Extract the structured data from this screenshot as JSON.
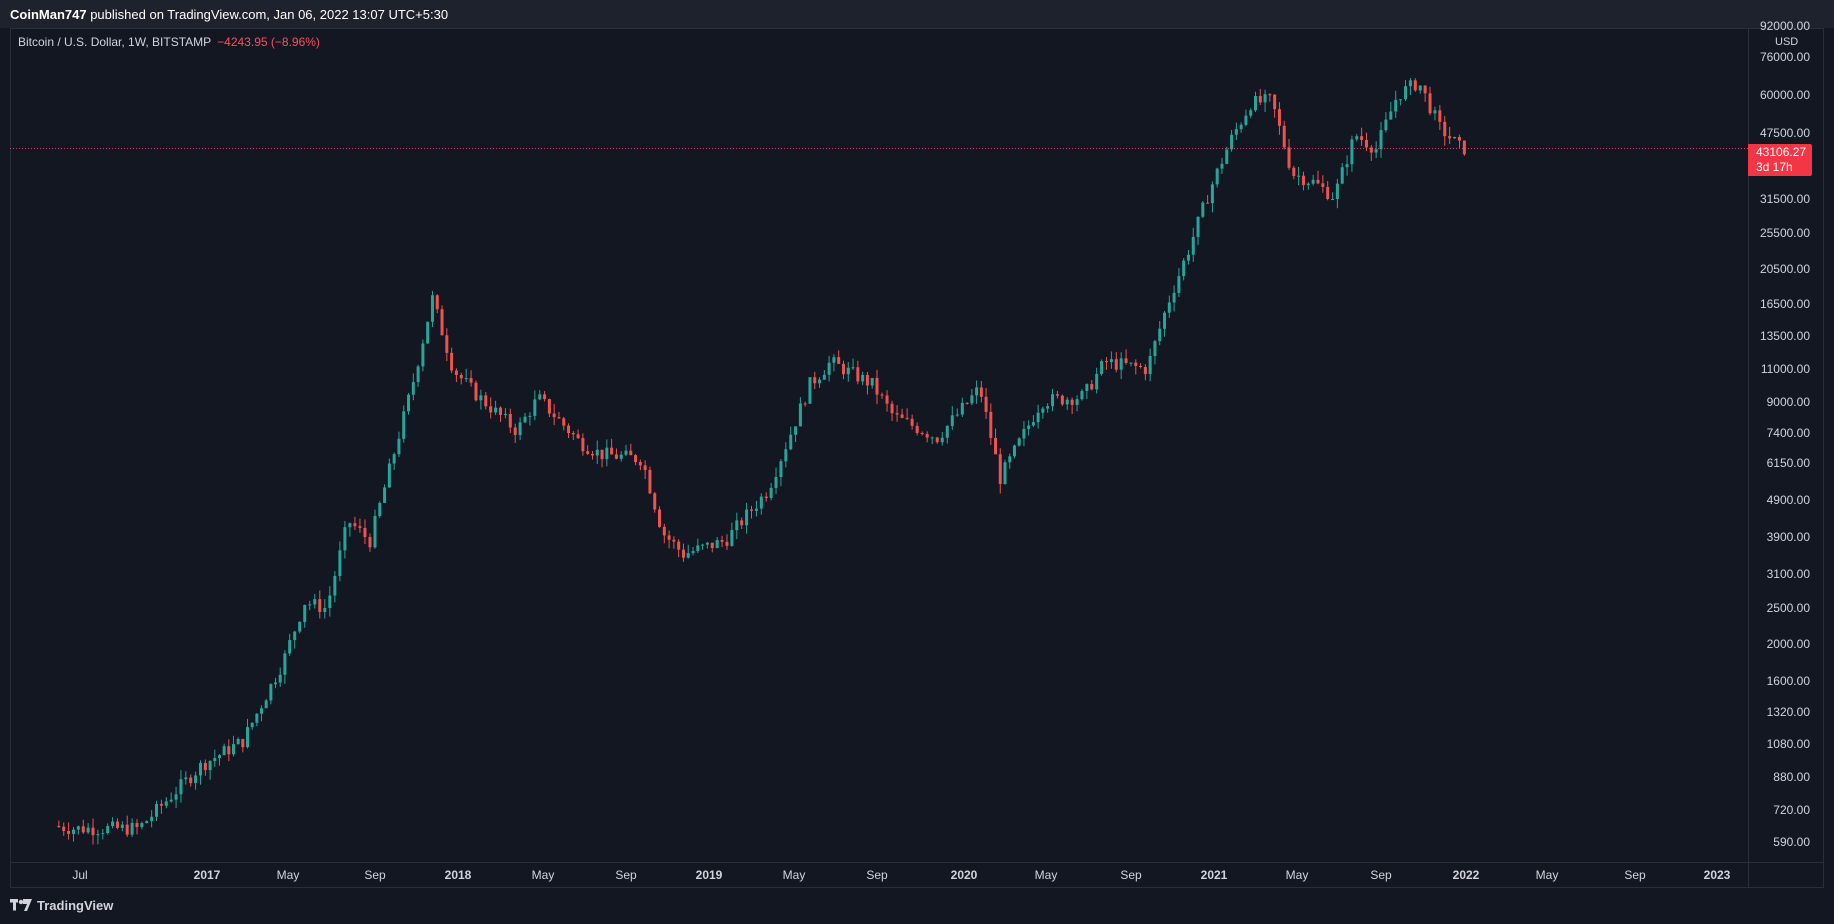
{
  "header": {
    "author": "CoinMan747",
    "publish_text": " published on TradingView.com, Jan 06, 2022 13:07 UTC+5:30"
  },
  "legend": {
    "symbol_text": "Bitcoin / U.S. Dollar, 1W, BITSTAMP",
    "change_text": "−4243.95 (−8.96%)"
  },
  "price_axis": {
    "currency": "USD",
    "labels": [
      "92000.00",
      "76000.00",
      "60000.00",
      "47500.00",
      "31500.00",
      "25500.00",
      "20500.00",
      "16500.00",
      "13500.00",
      "11000.00",
      "9000.00",
      "7400.00",
      "6150.00",
      "4900.00",
      "3900.00",
      "3100.00",
      "2500.00",
      "2000.00",
      "1600.00",
      "1320.00",
      "1080.00",
      "880.00",
      "720.00",
      "590.00"
    ]
  },
  "time_axis": {
    "labels": [
      {
        "text": "Jul",
        "bold": false
      },
      {
        "text": "2017",
        "bold": true
      },
      {
        "text": "May",
        "bold": false
      },
      {
        "text": "Sep",
        "bold": false
      },
      {
        "text": "2018",
        "bold": true
      },
      {
        "text": "May",
        "bold": false
      },
      {
        "text": "Sep",
        "bold": false
      },
      {
        "text": "2019",
        "bold": true
      },
      {
        "text": "May",
        "bold": false
      },
      {
        "text": "Sep",
        "bold": false
      },
      {
        "text": "2020",
        "bold": true
      },
      {
        "text": "May",
        "bold": false
      },
      {
        "text": "Sep",
        "bold": false
      },
      {
        "text": "2021",
        "bold": true
      },
      {
        "text": "May",
        "bold": false
      },
      {
        "text": "Sep",
        "bold": false
      },
      {
        "text": "2022",
        "bold": true
      },
      {
        "text": "May",
        "bold": false
      },
      {
        "text": "Sep",
        "bold": false
      },
      {
        "text": "2023",
        "bold": true
      }
    ]
  },
  "last_price": {
    "value": "43106.27",
    "countdown": "3d 17h"
  },
  "footer": {
    "brand": "TradingView",
    "logo_icon": "tradingview-logo-icon"
  },
  "colors": {
    "background": "#131722",
    "up": "#26a69a",
    "down": "#ef5350",
    "price_line": "#f23645"
  },
  "chart_data": {
    "type": "candlestick",
    "symbol": "Bitcoin / U.S. Dollar",
    "interval": "1W",
    "exchange": "BITSTAMP",
    "scale": "log",
    "y_range": [
      540,
      92000
    ],
    "last_price": 43106.27,
    "change": -4243.95,
    "change_pct": -8.96,
    "anchors": [
      {
        "date": "2016-06",
        "price": 650
      },
      {
        "date": "2016-07",
        "price": 640
      },
      {
        "date": "2016-10",
        "price": 640
      },
      {
        "date": "2017-01",
        "price": 950
      },
      {
        "date": "2017-03",
        "price": 1100
      },
      {
        "date": "2017-05",
        "price": 1800
      },
      {
        "date": "2017-06",
        "price": 2600
      },
      {
        "date": "2017-07",
        "price": 2500
      },
      {
        "date": "2017-08",
        "price": 4300
      },
      {
        "date": "2017-09",
        "price": 3800
      },
      {
        "date": "2017-10",
        "price": 6100
      },
      {
        "date": "2017-11",
        "price": 9800
      },
      {
        "date": "2017-12",
        "price": 17000
      },
      {
        "date": "2018-01",
        "price": 11000
      },
      {
        "date": "2018-02",
        "price": 9500
      },
      {
        "date": "2018-04",
        "price": 7500
      },
      {
        "date": "2018-05",
        "price": 9200
      },
      {
        "date": "2018-07",
        "price": 7000
      },
      {
        "date": "2018-08",
        "price": 6500
      },
      {
        "date": "2018-10",
        "price": 6300
      },
      {
        "date": "2018-11",
        "price": 4000
      },
      {
        "date": "2018-12",
        "price": 3500
      },
      {
        "date": "2019-02",
        "price": 3800
      },
      {
        "date": "2019-04",
        "price": 5200
      },
      {
        "date": "2019-06",
        "price": 10000
      },
      {
        "date": "2019-07",
        "price": 11500
      },
      {
        "date": "2019-09",
        "price": 10000
      },
      {
        "date": "2019-10",
        "price": 8200
      },
      {
        "date": "2019-12",
        "price": 7200
      },
      {
        "date": "2020-02",
        "price": 9800
      },
      {
        "date": "2020-03",
        "price": 5600
      },
      {
        "date": "2020-05",
        "price": 9000
      },
      {
        "date": "2020-07",
        "price": 9300
      },
      {
        "date": "2020-08",
        "price": 11500
      },
      {
        "date": "2020-10",
        "price": 11000
      },
      {
        "date": "2020-11",
        "price": 16500
      },
      {
        "date": "2020-12",
        "price": 23000
      },
      {
        "date": "2021-01",
        "price": 33000
      },
      {
        "date": "2021-02",
        "price": 45000
      },
      {
        "date": "2021-03",
        "price": 57000
      },
      {
        "date": "2021-04",
        "price": 58000
      },
      {
        "date": "2021-05",
        "price": 37000
      },
      {
        "date": "2021-06",
        "price": 35000
      },
      {
        "date": "2021-07",
        "price": 32000
      },
      {
        "date": "2021-08",
        "price": 47000
      },
      {
        "date": "2021-09",
        "price": 43000
      },
      {
        "date": "2021-10",
        "price": 60000
      },
      {
        "date": "2021-11",
        "price": 65000
      },
      {
        "date": "2021-12",
        "price": 49000
      },
      {
        "date": "2022-01",
        "price": 43106
      }
    ]
  }
}
